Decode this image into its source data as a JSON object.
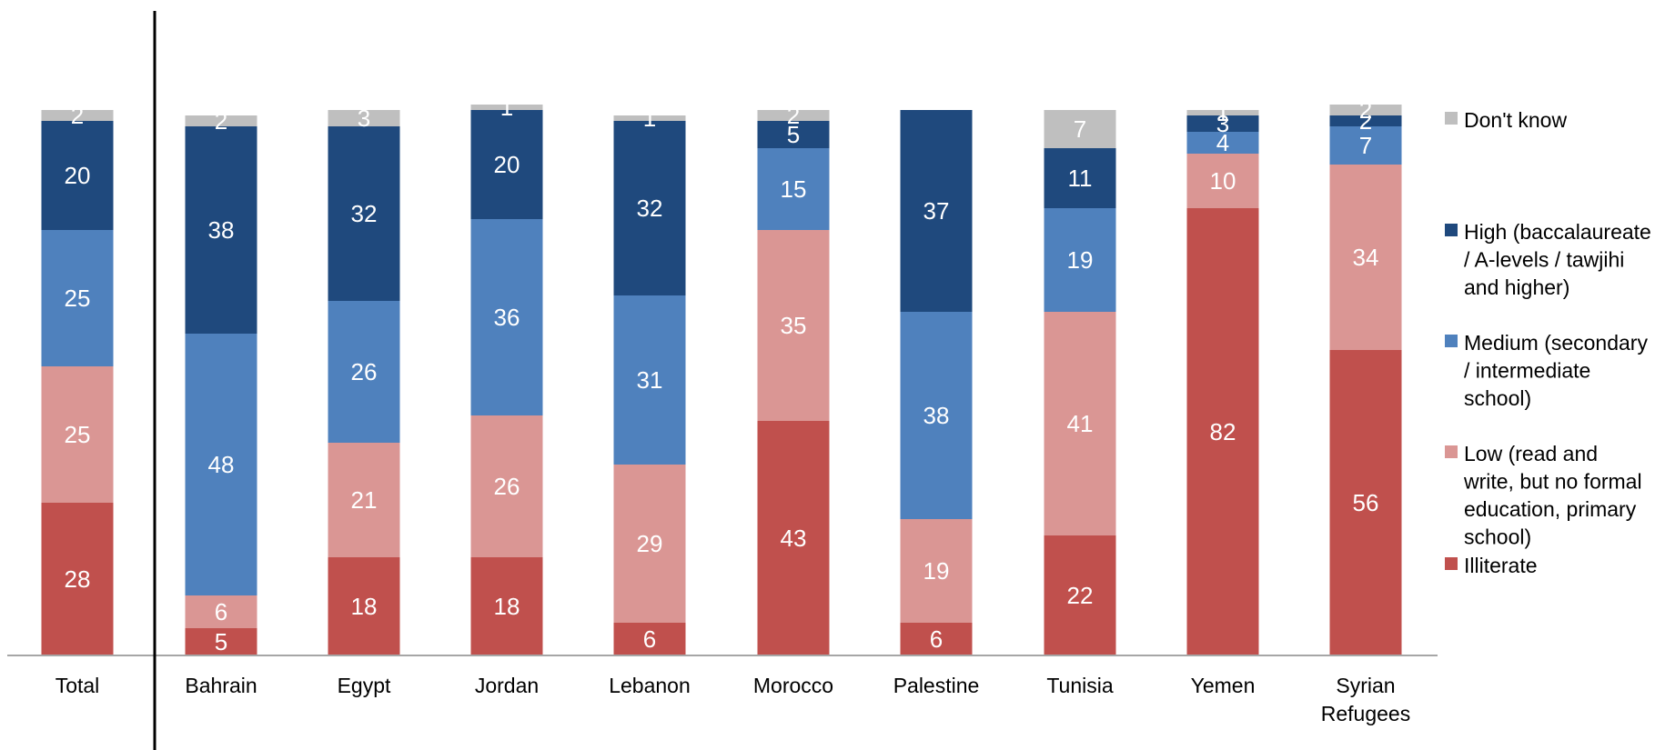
{
  "chart_data": {
    "type": "bar",
    "stacked": true,
    "categories": [
      "Total",
      "Bahrain",
      "Egypt",
      "Jordan",
      "Lebanon",
      "Morocco",
      "Palestine",
      "Tunisia",
      "Yemen",
      "Syrian\nRefugees"
    ],
    "series": [
      {
        "name": "Illiterate",
        "color": "#c0504d",
        "values": [
          28,
          5,
          18,
          18,
          6,
          43,
          6,
          22,
          82,
          56
        ]
      },
      {
        "name": "Low (read and write, but no formal education, primary school)",
        "color": "#da9694",
        "values": [
          25,
          6,
          21,
          26,
          29,
          35,
          19,
          41,
          10,
          34
        ]
      },
      {
        "name": "Medium (secondary / intermediate school)",
        "color": "#4f81bd",
        "values": [
          25,
          48,
          26,
          36,
          31,
          15,
          38,
          19,
          4,
          7
        ]
      },
      {
        "name": "High (baccalaureate / A-levels / tawjihi and higher)",
        "color": "#1f497d",
        "values": [
          20,
          38,
          32,
          20,
          32,
          5,
          37,
          11,
          3,
          2
        ]
      },
      {
        "name": "Don't know",
        "color": "#bfbfbf",
        "values": [
          2,
          2,
          3,
          1,
          1,
          2,
          0,
          7,
          1,
          2
        ]
      }
    ],
    "legend_order": [
      {
        "name": "Don't know",
        "color": "#bfbfbf",
        "lines": [
          "Don't know"
        ]
      },
      {
        "name": "High (baccalaureate / A-levels / tawjihi and higher)",
        "color": "#1f497d",
        "lines": [
          "High (baccalaureate",
          "/ A-levels / tawjihi",
          "and higher)"
        ]
      },
      {
        "name": "Medium (secondary / intermediate school)",
        "color": "#4f81bd",
        "lines": [
          "Medium (secondary",
          "/ intermediate",
          "school)"
        ]
      },
      {
        "name": "Low (read and write, but no formal education, primary school)",
        "color": "#da9694",
        "lines": [
          "Low (read and",
          "write, but no formal",
          "education, primary",
          "school)"
        ]
      },
      {
        "name": "Illiterate",
        "color": "#c0504d",
        "lines": [
          "Illiterate"
        ]
      }
    ],
    "legend_position": "right",
    "ylim": [
      0,
      100
    ],
    "grid": false,
    "title": "",
    "xlabel": "",
    "ylabel": ""
  }
}
